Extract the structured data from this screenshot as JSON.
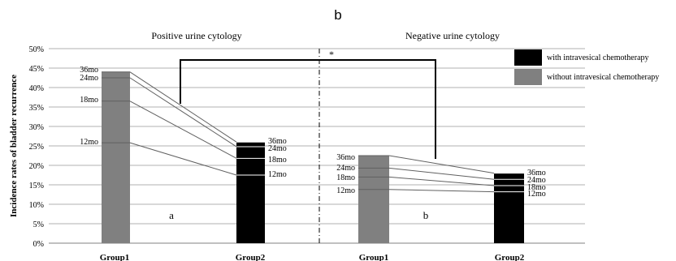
{
  "chart_data": {
    "type": "bar",
    "figure_label": "b",
    "panels": [
      {
        "title": "Positive urine cytology",
        "panel_label": "a",
        "categories": [
          "Group1",
          "Group2"
        ],
        "series": [
          {
            "name": "without intravesical chemotherapy",
            "category": "Group1",
            "values": {
              "12mo": 25.8,
              "18mo": 36.5,
              "24mo": 42.5,
              "36mo": 44.0
            }
          },
          {
            "name": "with intravesical chemotherapy",
            "category": "Group2",
            "values": {
              "12mo": 17.5,
              "18mo": 21.8,
              "24mo": 24.8,
              "36mo": 26.0
            }
          }
        ]
      },
      {
        "title": "Negative urine cytology",
        "panel_label": "b",
        "categories": [
          "Group1",
          "Group2"
        ],
        "series": [
          {
            "name": "without intravesical chemotherapy",
            "category": "Group1",
            "values": {
              "12mo": 13.8,
              "18mo": 17.0,
              "24mo": 19.3,
              "36mo": 22.5
            }
          },
          {
            "name": "with intravesical chemotherapy",
            "category": "Group2",
            "values": {
              "12mo": 13.2,
              "18mo": 14.8,
              "24mo": 16.4,
              "36mo": 18.0
            }
          }
        ]
      }
    ],
    "timepoints": [
      "12mo",
      "18mo",
      "24mo",
      "36mo"
    ],
    "ylabel": "Incidence  rates of bladder recurrence",
    "ylim": [
      0,
      50
    ],
    "yticks": [
      0,
      5,
      10,
      15,
      20,
      25,
      30,
      35,
      40,
      45,
      50
    ],
    "ytick_suffix": "%",
    "grid": true,
    "legend": {
      "position": "top-right",
      "entries": [
        "with intravesical chemotherapy",
        "without intravesical chemotherapy"
      ]
    },
    "significance_marker": "*",
    "colors": {
      "with": "#000000",
      "without": "#808080",
      "grid": "#b0b0b0",
      "connector": "#606060"
    }
  }
}
